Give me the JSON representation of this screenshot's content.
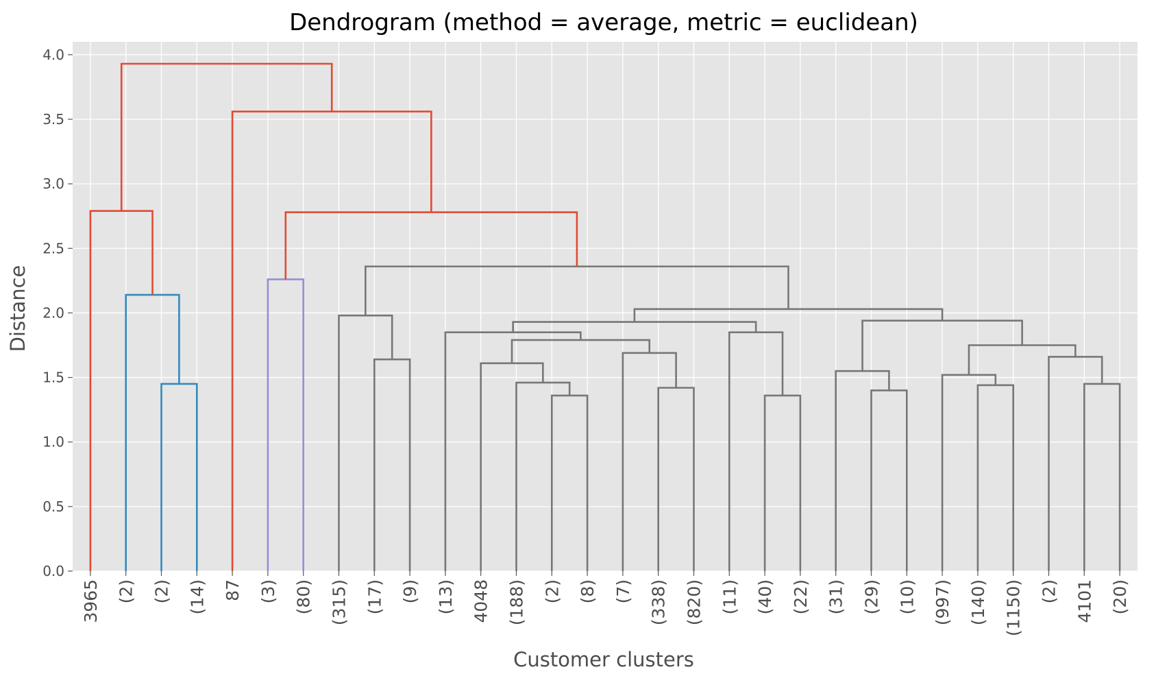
{
  "chart_data": {
    "type": "dendrogram",
    "title": "Dendrogram (method = average, metric = euclidean)",
    "xlabel": "Customer clusters",
    "ylabel": "Distance",
    "ylim": [
      0,
      4.1
    ],
    "yticks": [
      {
        "value": 0.0,
        "label": "0.0"
      },
      {
        "value": 0.5,
        "label": "0.5"
      },
      {
        "value": 1.0,
        "label": "1.0"
      },
      {
        "value": 1.5,
        "label": "1.5"
      },
      {
        "value": 2.0,
        "label": "2.0"
      },
      {
        "value": 2.5,
        "label": "2.5"
      },
      {
        "value": 3.0,
        "label": "3.0"
      },
      {
        "value": 3.5,
        "label": "3.5"
      },
      {
        "value": 4.0,
        "label": "4.0"
      }
    ],
    "grid": true,
    "background": "#e5e5e5",
    "colors": {
      "red": "#e24a33",
      "blue": "#348abd",
      "purple": "#988ed5",
      "gray": "#777777"
    },
    "leaves": [
      "3965",
      "(2)",
      "(2)",
      "(14)",
      "87",
      "(3)",
      "(80)",
      "(315)",
      "(17)",
      "(9)",
      "(13)",
      "4048",
      "(188)",
      "(2)",
      "(8)",
      "(7)",
      "(338)",
      "(820)",
      "(11)",
      "(40)",
      "(22)",
      "(31)",
      "(29)",
      "(10)",
      "(997)",
      "(140)",
      "(1150)",
      "(2)",
      "4101",
      "(20)"
    ],
    "merges": [
      {
        "left": 2,
        "right": 3,
        "height": 1.45,
        "color": "blue"
      },
      {
        "left": 1,
        "right": "m0",
        "height": 2.14,
        "color": "blue"
      },
      {
        "left": 0,
        "right": "m1",
        "height": 2.79,
        "color": "red"
      },
      {
        "left": 5,
        "right": 6,
        "height": 2.26,
        "color": "purple"
      },
      {
        "left": 8,
        "right": 9,
        "height": 1.64,
        "color": "gray"
      },
      {
        "left": 7,
        "right": "m4",
        "height": 1.98,
        "color": "gray"
      },
      {
        "left": 13,
        "right": 14,
        "height": 1.36,
        "color": "gray"
      },
      {
        "left": 12,
        "right": "m6",
        "height": 1.46,
        "color": "gray"
      },
      {
        "left": 11,
        "right": "m7",
        "height": 1.61,
        "color": "gray"
      },
      {
        "left": 16,
        "right": 17,
        "height": 1.42,
        "color": "gray"
      },
      {
        "left": 15,
        "right": "m9",
        "height": 1.69,
        "color": "gray"
      },
      {
        "left": "m8",
        "right": "m10",
        "height": 1.79,
        "color": "gray"
      },
      {
        "left": 10,
        "right": "m11",
        "height": 1.85,
        "color": "gray"
      },
      {
        "left": 19,
        "right": 20,
        "height": 1.36,
        "color": "gray"
      },
      {
        "left": 18,
        "right": "m13",
        "height": 1.85,
        "color": "gray"
      },
      {
        "left": "m12",
        "right": "m14",
        "height": 1.93,
        "color": "gray"
      },
      {
        "left": 22,
        "right": 23,
        "height": 1.4,
        "color": "gray"
      },
      {
        "left": 21,
        "right": "m16",
        "height": 1.55,
        "color": "gray"
      },
      {
        "left": 25,
        "right": 26,
        "height": 1.44,
        "color": "gray"
      },
      {
        "left": 24,
        "right": "m18",
        "height": 1.52,
        "color": "gray"
      },
      {
        "left": 28,
        "right": 29,
        "height": 1.45,
        "color": "gray"
      },
      {
        "left": 27,
        "right": "m20",
        "height": 1.66,
        "color": "gray"
      },
      {
        "left": "m19",
        "right": "m21",
        "height": 1.75,
        "color": "gray"
      },
      {
        "left": "m17",
        "right": "m22",
        "height": 1.94,
        "color": "gray"
      },
      {
        "left": "m15",
        "right": "m23",
        "height": 2.03,
        "color": "gray"
      },
      {
        "left": "m5",
        "right": "m24",
        "height": 2.36,
        "color": "gray"
      },
      {
        "left": "m3",
        "right": "m25",
        "height": 2.78,
        "color": "red"
      },
      {
        "left": 4,
        "right": "m26",
        "height": 3.56,
        "color": "red"
      },
      {
        "left": "m2",
        "right": "m27",
        "height": 3.93,
        "color": "red"
      }
    ]
  }
}
